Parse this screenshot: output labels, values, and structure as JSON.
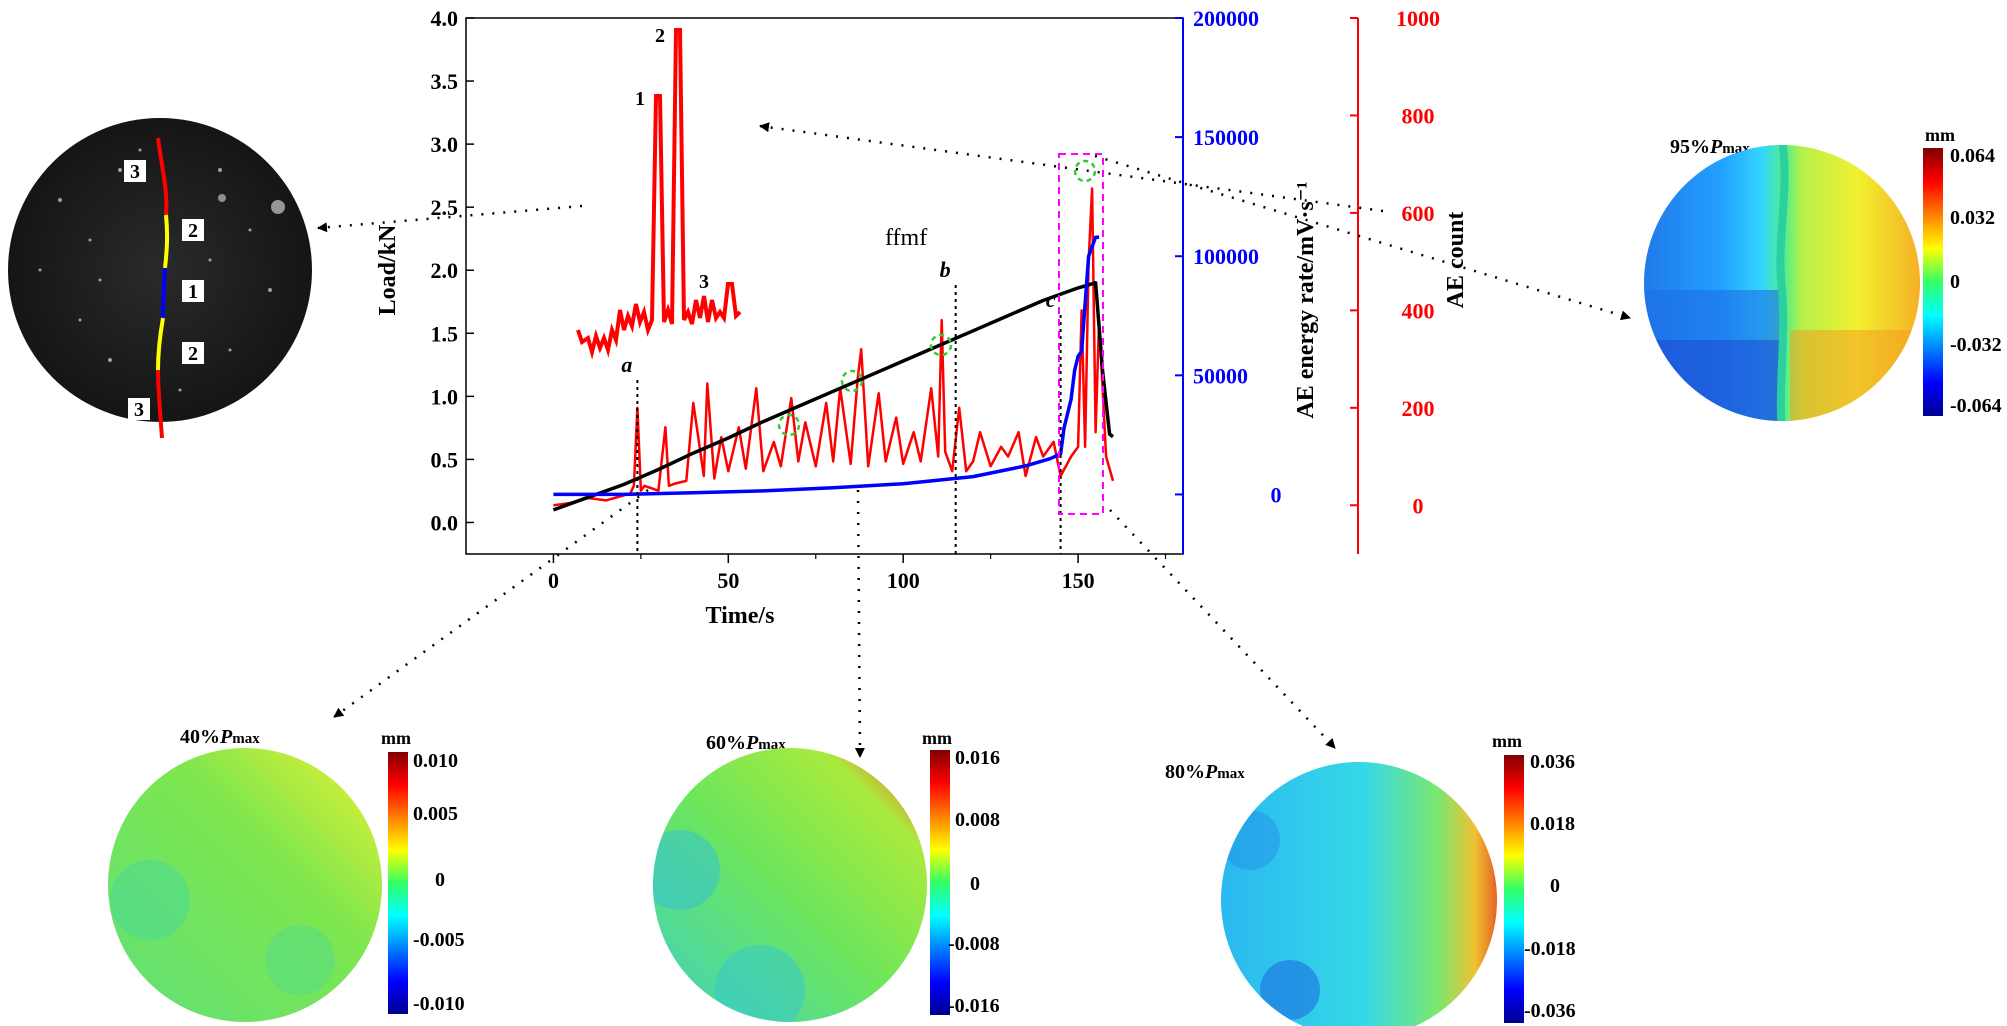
{
  "chart_data": {
    "type": "line",
    "title": "",
    "annotation_text": "ffmf",
    "xlabel": "Time/s",
    "ylabel_left": "Load/kN",
    "ylabel_right1": "AE energy rate/mV·s⁻¹",
    "ylabel_right2": "AE count",
    "xlim": [
      -25,
      180
    ],
    "xticks": [
      0,
      50,
      100,
      150
    ],
    "xtick_labels": [
      "0",
      "50",
      "100",
      "150"
    ],
    "ylim_left": [
      -0.25,
      4.0
    ],
    "yticks_left": [
      0.0,
      0.5,
      1.0,
      1.5,
      2.0,
      2.5,
      3.0,
      3.5,
      4.0
    ],
    "ytick_labels_left": [
      "0.0",
      "0.5",
      "1.0",
      "1.5",
      "2.0",
      "2.5",
      "3.0",
      "3.5",
      "4.0"
    ],
    "ylim_right1": [
      -25000,
      200000
    ],
    "yticks_right1": [
      0,
      50000,
      100000,
      150000,
      200000
    ],
    "ytick_labels_right1": [
      "0",
      "50000",
      "100000",
      "150000",
      "200000"
    ],
    "ylim_right2": [
      -100,
      1000
    ],
    "yticks_right2": [
      0,
      200,
      400,
      600,
      800,
      1000
    ],
    "ytick_labels_right2": [
      "0",
      "200",
      "400",
      "600",
      "800",
      "1000"
    ],
    "series": [
      {
        "name": "Load",
        "axis": "left",
        "color": "#000000",
        "x": [
          0,
          10,
          20,
          30,
          40,
          50,
          60,
          70,
          80,
          90,
          100,
          110,
          120,
          130,
          140,
          150,
          155,
          157,
          159,
          160
        ],
        "y": [
          0.1,
          0.2,
          0.3,
          0.42,
          0.55,
          0.67,
          0.8,
          0.92,
          1.04,
          1.16,
          1.28,
          1.4,
          1.52,
          1.64,
          1.76,
          1.86,
          1.9,
          1.2,
          0.7,
          0.68
        ]
      },
      {
        "name": "AE energy rate",
        "axis": "right1",
        "color": "#0000ff",
        "x": [
          0,
          20,
          40,
          60,
          80,
          100,
          120,
          135,
          142,
          145,
          146,
          148,
          149,
          150,
          151,
          153,
          155,
          156
        ],
        "y": [
          0,
          0,
          700,
          1500,
          2800,
          4500,
          7500,
          12000,
          15000,
          17000,
          28000,
          40000,
          52000,
          58000,
          60000,
          100000,
          108000,
          108000
        ]
      },
      {
        "name": "AE count",
        "axis": "right2",
        "color": "#ff0000",
        "x": [
          0,
          5,
          10,
          15,
          20,
          22,
          23,
          24,
          25,
          26,
          30,
          32,
          33,
          35,
          38,
          40,
          43,
          44,
          46,
          48,
          50,
          53,
          55,
          58,
          60,
          63,
          65,
          68,
          70,
          72,
          75,
          78,
          80,
          82,
          85,
          87,
          88,
          90,
          93,
          95,
          98,
          100,
          103,
          105,
          108,
          110,
          111,
          112,
          114,
          116,
          118,
          120,
          122,
          125,
          128,
          130,
          133,
          135,
          138,
          140,
          143,
          145,
          148,
          150,
          151,
          152,
          153,
          154,
          155,
          156,
          158,
          160
        ],
        "y": [
          0,
          5,
          15,
          10,
          20,
          25,
          40,
          200,
          30,
          40,
          30,
          160,
          40,
          45,
          50,
          210,
          60,
          250,
          55,
          140,
          70,
          160,
          75,
          240,
          70,
          130,
          80,
          220,
          90,
          170,
          80,
          210,
          90,
          240,
          85,
          260,
          320,
          80,
          230,
          90,
          180,
          85,
          150,
          90,
          240,
          100,
          380,
          110,
          70,
          200,
          70,
          90,
          150,
          80,
          120,
          100,
          150,
          60,
          140,
          100,
          130,
          60,
          100,
          120,
          400,
          120,
          500,
          650,
          150,
          380,
          100,
          50
        ]
      }
    ],
    "event_markers": [
      {
        "label": "a",
        "x": 24
      },
      {
        "label": "b",
        "x": 115
      },
      {
        "label": "c",
        "x": 145
      }
    ],
    "inset": {
      "point_labels": [
        "1",
        "2",
        "3"
      ]
    },
    "dic_panels": [
      {
        "title_prefix": "95%",
        "title_var": "P",
        "title_sub": "max",
        "unit": "mm",
        "ticks": [
          "0.064",
          "0.032",
          "0",
          "-0.032",
          "-0.064"
        ]
      },
      {
        "title_prefix": "40%",
        "title_var": "P",
        "title_sub": "max",
        "unit": "mm",
        "ticks": [
          "0.010",
          "0.005",
          "0",
          "-0.005",
          "-0.010"
        ]
      },
      {
        "title_prefix": "60%",
        "title_var": "P",
        "title_sub": "max",
        "unit": "mm",
        "ticks": [
          "0.016",
          "0.008",
          "0",
          "-0.008",
          "-0.016"
        ]
      },
      {
        "title_prefix": "80%",
        "title_var": "P",
        "title_sub": "max",
        "unit": "mm",
        "ticks": [
          "0.036",
          "0.018",
          "0",
          "-0.018",
          "-0.036"
        ]
      }
    ],
    "specimen_photo": {
      "crack_segment_labels": [
        "3",
        "2",
        "1",
        "2",
        "3"
      ]
    }
  },
  "colors": {
    "load": "#000000",
    "energy": "#0000ff",
    "count": "#ff0000",
    "highlight_box": "#ff00ff",
    "peak_circle": "#33cc33"
  }
}
